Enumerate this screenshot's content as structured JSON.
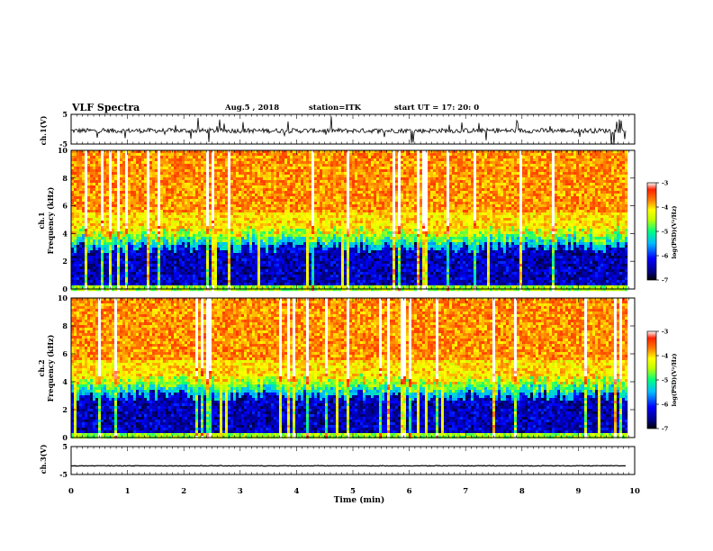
{
  "header": {
    "title": "VLF Spectra",
    "date": "Aug.5 , 2018",
    "station": "station=ITK",
    "start": "start UT =   17: 20: 0"
  },
  "colors": {
    "colormap": [
      "#000000",
      "#00007f",
      "#0000ff",
      "#00bfff",
      "#00ff7f",
      "#bfff00",
      "#ffff00",
      "#ff8000",
      "#ff2000",
      "#ffffff"
    ]
  },
  "chart_data": [
    {
      "type": "line",
      "name": "ch1-waveform",
      "ylabel": "ch.1(V)",
      "ylim": [
        -5,
        5
      ],
      "yticks": [
        "5",
        "-5"
      ],
      "baseline": -0.5,
      "xlim": [
        0,
        10
      ]
    },
    {
      "type": "heatmap",
      "name": "ch1-spectrogram",
      "ylabel": "ch.1\nFrequency (kHz)",
      "ylim": [
        0,
        10
      ],
      "yticks": [
        "0",
        "2",
        "4",
        "6",
        "8",
        "10"
      ],
      "xlim": [
        0,
        10
      ],
      "data_end_min": 9.85,
      "features": {
        "low_band_kHz": [
          0,
          3.5
        ],
        "low_band_log_psd": -6.5,
        "high_band_log_psd": -3.7
      },
      "colorbar": {
        "label": "log(PSD)(V²/Hz)",
        "ticks": [
          "-3",
          "-4",
          "-5",
          "-6",
          "-7"
        ],
        "range": [
          -7,
          -3
        ]
      }
    },
    {
      "type": "heatmap",
      "name": "ch2-spectrogram",
      "ylabel": "ch.2\nFrequency (kHz)",
      "ylim": [
        0,
        10
      ],
      "yticks": [
        "0",
        "2",
        "4",
        "6",
        "8",
        "10"
      ],
      "xlim": [
        0,
        10
      ],
      "data_end_min": 9.85,
      "features": {
        "low_band_kHz": [
          0,
          3.5
        ],
        "low_band_log_psd": -6.5,
        "high_band_log_psd": -3.7
      },
      "colorbar": {
        "label": "log(PSD)(V²/Hz)",
        "ticks": [
          "-3",
          "-4",
          "-5",
          "-6",
          "-7"
        ],
        "range": [
          -7,
          -3
        ]
      }
    },
    {
      "type": "line",
      "name": "ch3-waveform",
      "ylabel": "ch.3(V)",
      "ylim": [
        -5,
        5
      ],
      "yticks": [
        "5",
        "-5"
      ],
      "baseline": -1.9,
      "xlim": [
        0,
        10
      ]
    }
  ],
  "xaxis": {
    "label": "Time (min)",
    "ticks": [
      "0",
      "1",
      "2",
      "3",
      "4",
      "5",
      "6",
      "7",
      "8",
      "9",
      "10"
    ]
  }
}
